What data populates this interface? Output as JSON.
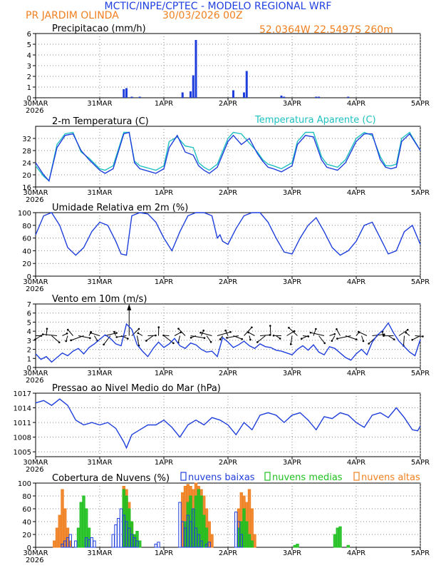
{
  "header": {
    "title": "MCTIC/INPE/CPTEC - MODELO REGIONAL WRF",
    "station": "PR JARDIM OLINDA",
    "run": "30/03/2026 00Z",
    "coords": "52.0364W 22.5497S 260m"
  },
  "axis": {
    "dates": [
      "30MAR",
      "31MAR",
      "1APR",
      "2APR",
      "3APR",
      "4APR",
      "5APR"
    ],
    "year": "2026",
    "hours_total": 144
  },
  "colors": {
    "blue": "#1f3fdc",
    "orange": "#f08020",
    "cyan": "#20c0c0",
    "green": "#20c020",
    "header": "#2040e0"
  },
  "chart_data": [
    {
      "type": "bar",
      "title": "Precipitacao (mm/h)",
      "ylim": [
        0,
        6
      ],
      "yticks": [
        0,
        1,
        2,
        3,
        4,
        5,
        6
      ],
      "x_unit": "hours since 30MAR 00Z",
      "x": [
        33,
        34,
        36,
        39,
        55,
        58,
        59,
        60,
        74,
        78,
        79,
        92,
        93,
        105,
        106,
        117
      ],
      "values": [
        0.8,
        0.9,
        0.1,
        0.1,
        0.5,
        0.6,
        2.1,
        5.4,
        0.7,
        0.5,
        2.5,
        0.2,
        0.1,
        0.1,
        0.1,
        0.1
      ]
    },
    {
      "type": "line",
      "title": "2-m Temperatura (C)",
      "legend": "Temperatura Aparente (C)",
      "ylim": [
        16,
        36
      ],
      "yticks": [
        16,
        20,
        24,
        28,
        32
      ],
      "x": [
        0,
        3,
        5,
        8,
        11,
        14,
        17,
        20,
        24,
        26,
        29,
        33,
        35,
        37,
        39,
        41,
        43,
        45,
        48,
        50,
        53,
        56,
        59,
        61,
        63,
        65,
        68,
        72,
        74,
        77,
        80,
        83,
        85,
        87,
        89,
        92,
        96,
        98,
        101,
        104,
        107,
        109,
        111,
        113,
        116,
        120,
        123,
        126,
        129,
        131,
        133,
        135,
        137,
        140,
        144
      ],
      "series": [
        {
          "name": "Temperatura 2m",
          "values": [
            24,
            20,
            18,
            29,
            33,
            33.5,
            28,
            25,
            21.5,
            20.5,
            22,
            33.5,
            34,
            24,
            22,
            21.5,
            21,
            20.5,
            22,
            29,
            33,
            27.5,
            26.5,
            23,
            21.5,
            20.5,
            22.5,
            31,
            33,
            30,
            32,
            27,
            24.5,
            22.5,
            22,
            21,
            23,
            30,
            33,
            32.5,
            25,
            22.5,
            22,
            21.5,
            24,
            31,
            33.5,
            33.5,
            25,
            22.5,
            22,
            22.5,
            31,
            33.5,
            28
          ]
        },
        {
          "name": "Temperatura Aparente",
          "values": [
            23,
            19.5,
            18,
            30,
            33.5,
            34,
            27.5,
            25.5,
            22,
            21.5,
            23,
            34,
            34,
            24.5,
            23,
            22.5,
            22,
            21.5,
            23,
            31,
            32.5,
            29.5,
            29,
            24,
            22.5,
            21.5,
            23.5,
            32,
            34,
            33.5,
            30.5,
            27.5,
            25,
            23.5,
            23,
            22,
            24,
            31,
            34,
            34,
            26,
            23.5,
            23,
            22.5,
            25,
            32,
            34,
            33,
            26,
            23,
            23,
            23.5,
            32,
            34,
            28
          ]
        }
      ]
    },
    {
      "type": "line",
      "title": "Umidade Relativa em 2m (%)",
      "ylim": [
        0,
        100
      ],
      "yticks": [
        0,
        20,
        40,
        60,
        80,
        100
      ],
      "x": [
        0,
        3,
        6,
        9,
        12,
        15,
        18,
        21,
        24,
        27,
        30,
        32,
        34,
        36,
        39,
        42,
        45,
        48,
        51,
        54,
        57,
        60,
        63,
        66,
        68,
        69,
        70,
        72,
        75,
        78,
        81,
        84,
        87,
        90,
        93,
        96,
        99,
        102,
        105,
        108,
        111,
        114,
        117,
        120,
        123,
        126,
        129,
        132,
        135,
        138,
        141,
        144
      ],
      "series": [
        {
          "name": "Umidade",
          "values": [
            65,
            95,
            100,
            80,
            45,
            33,
            45,
            70,
            85,
            80,
            55,
            35,
            33,
            95,
            100,
            98,
            85,
            60,
            40,
            70,
            95,
            100,
            100,
            95,
            60,
            65,
            55,
            50,
            75,
            95,
            100,
            100,
            85,
            60,
            38,
            35,
            60,
            80,
            92,
            70,
            45,
            33,
            40,
            55,
            80,
            85,
            60,
            35,
            40,
            70,
            80,
            50
          ]
        }
      ]
    },
    {
      "type": "line",
      "title": "Vento em 10m (m/s)",
      "ylim": [
        0,
        7
      ],
      "yticks": [
        0,
        1,
        2,
        3,
        4,
        5,
        6,
        7
      ],
      "x": [
        0,
        2,
        4,
        6,
        8,
        10,
        12,
        14,
        16,
        18,
        20,
        22,
        24,
        26,
        28,
        30,
        32,
        34,
        36,
        38,
        40,
        42,
        44,
        46,
        48,
        50,
        52,
        54,
        56,
        58,
        60,
        62,
        64,
        66,
        68,
        70,
        72,
        74,
        76,
        78,
        80,
        82,
        84,
        86,
        88,
        90,
        92,
        94,
        96,
        98,
        100,
        102,
        104,
        106,
        108,
        110,
        112,
        114,
        116,
        118,
        120,
        122,
        124,
        126,
        128,
        130,
        132,
        134,
        136,
        138,
        140,
        142,
        144
      ],
      "series": [
        {
          "name": "Vento",
          "values": [
            1.5,
            0.9,
            1.2,
            0.6,
            1.1,
            1.6,
            1.3,
            1.8,
            2.1,
            1.5,
            2.2,
            2.6,
            3.1,
            3.6,
            3.2,
            2.6,
            2.4,
            4.8,
            4.2,
            2.5,
            1.8,
            1.2,
            2.1,
            2.8,
            2.2,
            2.6,
            3.2,
            2.4,
            2.1,
            2.7,
            2.5,
            2.0,
            1.7,
            1.8,
            1.2,
            3.3,
            2.8,
            2.2,
            2.5,
            2.9,
            2.4,
            2.1,
            2.6,
            2.3,
            2.2,
            1.9,
            1.8,
            1.6,
            1.4,
            2.0,
            2.4,
            1.9,
            2.5,
            1.7,
            1.4,
            2.3,
            2.1,
            1.6,
            1.1,
            0.8,
            1.5,
            2.0,
            1.4,
            2.8,
            3.6,
            4.1,
            4.9,
            3.8,
            2.9,
            2.3,
            1.7,
            1.3,
            3.1
          ]
        }
      ],
      "vectors_hours": [
        0,
        2,
        4,
        6,
        8,
        10,
        12,
        14,
        16,
        18,
        20,
        22,
        24,
        26,
        28,
        30,
        32,
        34,
        36,
        38,
        40,
        42,
        44,
        46,
        48,
        50,
        52,
        54,
        56,
        58,
        60,
        62,
        64,
        66,
        68,
        70,
        72,
        74,
        76,
        78,
        80,
        82,
        84,
        86,
        88,
        90,
        92,
        94,
        96,
        98,
        100,
        102,
        104,
        106,
        108,
        110,
        112,
        114,
        116,
        118,
        120,
        122,
        124,
        126,
        128,
        130,
        132,
        134,
        136,
        138,
        140,
        142,
        144
      ]
    },
    {
      "type": "line",
      "title": "Pressao ao Nivel Medio do Mar (hPa)",
      "ylim": [
        1004,
        1017
      ],
      "yticks": [
        1005,
        1008,
        1011,
        1014,
        1017
      ],
      "x": [
        0,
        3,
        6,
        9,
        12,
        15,
        18,
        21,
        24,
        27,
        30,
        33,
        34,
        36,
        39,
        42,
        45,
        48,
        51,
        54,
        57,
        60,
        63,
        66,
        69,
        72,
        75,
        78,
        81,
        84,
        87,
        90,
        93,
        96,
        99,
        102,
        105,
        108,
        111,
        114,
        117,
        120,
        123,
        126,
        129,
        132,
        135,
        138,
        141,
        143,
        144
      ],
      "series": [
        {
          "name": "Pressao",
          "values": [
            1015,
            1015.5,
            1014.5,
            1015.8,
            1014.5,
            1011.5,
            1010.5,
            1011,
            1010.5,
            1011,
            1009.8,
            1007,
            1005.8,
            1008.5,
            1009.5,
            1010.5,
            1010.5,
            1011.5,
            1010,
            1008,
            1010.5,
            1011.5,
            1010.5,
            1012,
            1011.5,
            1010.5,
            1008.5,
            1011,
            1009.5,
            1012.5,
            1013,
            1012.5,
            1011,
            1012.5,
            1013,
            1011.5,
            1009.5,
            1012.2,
            1011.8,
            1013,
            1012.5,
            1011,
            1010,
            1012.5,
            1013,
            1012,
            1014,
            1012,
            1009.5,
            1009.3,
            1010.3
          ]
        }
      ]
    },
    {
      "type": "bar",
      "title": "Cobertura de Nuvens (%)",
      "legend": [
        "nuvens baixas",
        "nuvens medias",
        "nuvens altas"
      ],
      "ylim": [
        0,
        100
      ],
      "yticks": [
        0,
        20,
        40,
        60,
        80,
        100
      ],
      "x_unit": "hours since 30MAR 00Z",
      "series": [
        {
          "name": "nuvens baixas",
          "x": [
            10,
            11,
            12,
            13,
            15,
            19,
            20,
            21,
            22,
            29,
            30,
            31,
            32,
            33,
            34,
            35,
            36,
            37,
            38,
            45,
            46,
            54,
            55,
            56,
            57,
            58,
            59,
            60,
            61,
            62,
            64,
            65,
            75,
            76,
            77
          ],
          "values": [
            5,
            10,
            15,
            20,
            10,
            15,
            12,
            15,
            10,
            20,
            35,
            45,
            60,
            50,
            40,
            30,
            20,
            15,
            10,
            5,
            8,
            70,
            40,
            30,
            50,
            40,
            60,
            30,
            20,
            10,
            5,
            8,
            55,
            40,
            20
          ]
        },
        {
          "name": "nuvens medias",
          "x": [
            16,
            17,
            18,
            19,
            20,
            33,
            34,
            35,
            36,
            37,
            38,
            39,
            56,
            57,
            58,
            59,
            60,
            61,
            62,
            63,
            64,
            76,
            77,
            78,
            79,
            80,
            81,
            97,
            98,
            112,
            113,
            114,
            117
          ],
          "values": [
            30,
            70,
            80,
            60,
            30,
            90,
            80,
            60,
            40,
            20,
            25,
            10,
            40,
            70,
            80,
            60,
            80,
            90,
            80,
            50,
            30,
            30,
            40,
            60,
            40,
            20,
            10,
            3,
            5,
            20,
            30,
            32,
            3
          ]
        },
        {
          "name": "nuvens altas",
          "x": [
            7,
            8,
            9,
            10,
            11,
            12,
            13,
            33,
            34,
            35,
            36,
            37,
            55,
            56,
            57,
            58,
            59,
            60,
            61,
            62,
            63,
            64,
            65,
            66,
            76,
            77,
            78,
            79,
            80,
            81,
            82
          ],
          "values": [
            10,
            30,
            50,
            90,
            60,
            30,
            10,
            95,
            90,
            70,
            40,
            20,
            85,
            95,
            98,
            95,
            90,
            100,
            95,
            90,
            80,
            60,
            40,
            20,
            60,
            85,
            80,
            70,
            90,
            60,
            20
          ]
        }
      ]
    }
  ]
}
